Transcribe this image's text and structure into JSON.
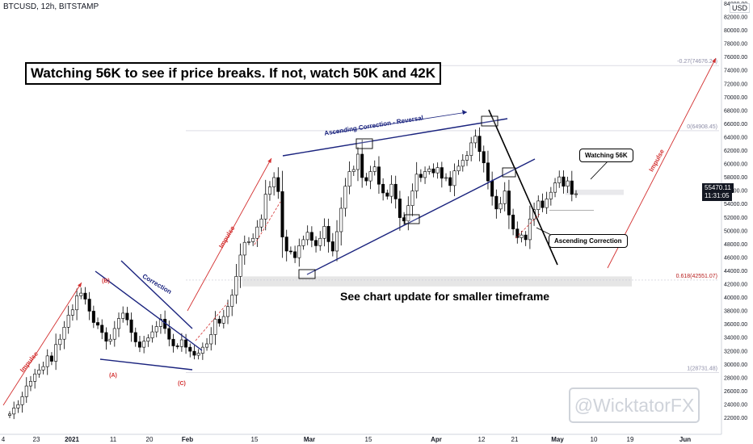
{
  "header": {
    "symbol_line": "BTCUSD, 12h, BITSTAMP",
    "currency_label": "USD"
  },
  "banner_text": "Watching 56K to see if price breaks. If not, watch 50K and 42K",
  "note_text": "See chart update for smaller timeframe",
  "watermark_text": "@WicktatorFX",
  "callouts": {
    "watching": "Watching 56K",
    "ascending": "Ascending Correction"
  },
  "price_tags": {
    "last_price": "55470.11",
    "countdown": "11:31:05"
  },
  "colors": {
    "up_candle": "#ffffff",
    "down_candle": "#000000",
    "trend_line": "#1a237e",
    "impulse_arrow": "#d32f2f",
    "fib_label": "#8e8ea8",
    "fib_0618_label": "#b71c1c",
    "support_zone": "#e6e6e6",
    "price_tag_bg": "#131722"
  },
  "chart_data": {
    "type": "candlestick",
    "title": "BTCUSD, 12h, BITSTAMP",
    "ylim": [
      21000,
      86000
    ],
    "y_ticks": [
      22000,
      24000,
      26000,
      28000,
      30000,
      32000,
      34000,
      36000,
      38000,
      40000,
      42000,
      44000,
      46000,
      48000,
      50000,
      52000,
      54000,
      56000,
      58000,
      60000,
      62000,
      64000,
      66000,
      68000,
      70000,
      72000,
      74000,
      76000,
      78000,
      80000,
      82000,
      84000
    ],
    "x_ticks": [
      "4",
      "23",
      "2021",
      "11",
      "20",
      "Feb",
      "15",
      "Mar",
      "15",
      "Apr",
      "12",
      "21",
      "May",
      "10",
      "19",
      "Jun"
    ],
    "series_close": [
      22500,
      23400,
      23900,
      25100,
      26700,
      27400,
      28500,
      29100,
      29600,
      31200,
      30400,
      32900,
      33700,
      35500,
      37300,
      38100,
      40200,
      40600,
      39700,
      37900,
      36200,
      35800,
      34700,
      33400,
      33700,
      35300,
      36800,
      37600,
      36600,
      34700,
      33300,
      32500,
      33400,
      33900,
      34800,
      35600,
      36700,
      35300,
      33700,
      32700,
      32600,
      33600,
      32500,
      31900,
      31300,
      31600,
      32500,
      33000,
      34400,
      36700,
      36100,
      37100,
      38600,
      40300,
      43100,
      46300,
      48200,
      48300,
      48800,
      50500,
      51700,
      55400,
      56500,
      57900,
      55800,
      49000,
      46900,
      46800,
      45900,
      47700,
      48600,
      49700,
      48500,
      47700,
      48800,
      50600,
      48300,
      46900,
      49800,
      53300,
      56600,
      58800,
      59100,
      61400,
      57900,
      57400,
      58800,
      59500,
      56900,
      55600,
      55100,
      56900,
      54700,
      51900,
      51400,
      53700,
      55900,
      58400,
      57900,
      58800,
      59200,
      58600,
      59400,
      57800,
      57900,
      56700,
      58900,
      59600,
      60500,
      61200,
      63100,
      64100,
      61800,
      60100,
      57400,
      55100,
      53200,
      54000,
      55900,
      52300,
      50200,
      48900,
      49300,
      48600,
      51700,
      53100,
      54400,
      53400,
      54700,
      55700,
      57100,
      58000,
      56600,
      57400,
      55400,
      55470
    ],
    "series_open_first": 22300,
    "fib_levels": [
      {
        "label": "-0.27(74676.24)",
        "value": 74676.24
      },
      {
        "label": "0(64908.45)",
        "value": 64908.45
      },
      {
        "label": "0.618(42551.07)",
        "value": 42551.07
      },
      {
        "label": "1(28731.48)",
        "value": 28731.48
      }
    ],
    "annotations": [
      {
        "text": "Impulse",
        "kind": "wave"
      },
      {
        "text": "Correction",
        "kind": "wave"
      },
      {
        "text": "Impulse",
        "kind": "wave"
      },
      {
        "text": "Ascending Correction - Reversal",
        "kind": "wave"
      },
      {
        "text": "Impulse",
        "kind": "wave"
      },
      {
        "text": "(A)",
        "kind": "label"
      },
      {
        "text": "(B)",
        "kind": "label"
      },
      {
        "text": "(C)",
        "kind": "label"
      }
    ]
  }
}
